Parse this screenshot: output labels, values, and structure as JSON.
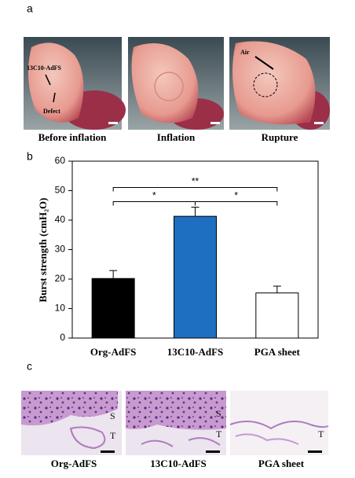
{
  "panel_labels": [
    "a",
    "b",
    "c"
  ],
  "photos": {
    "labels": [
      "Before inflation",
      "Inflation",
      "Rupture"
    ],
    "annotations": [
      "13C10-AdFS",
      "Defect",
      "Air"
    ]
  },
  "chart_data": {
    "type": "bar",
    "ylabel": "Burst strength (cmH₂O)",
    "categories": [
      "Org-AdFS",
      "13C10-AdFS",
      "PGA sheet"
    ],
    "values": [
      20.2,
      41.3,
      15.3
    ],
    "errors": [
      2.7,
      3.1,
      2.3
    ],
    "colors": [
      "#000000",
      "#1e6fc2",
      "#ffffff"
    ],
    "ylim": [
      0,
      60
    ],
    "yticks": [
      0,
      10,
      20,
      30,
      40,
      50,
      60
    ],
    "significance": [
      {
        "between": [
          0,
          1
        ],
        "label": "*"
      },
      {
        "between": [
          1,
          2
        ],
        "label": "*"
      },
      {
        "between": [
          0,
          2
        ],
        "label": "**"
      }
    ]
  },
  "histology": {
    "labels": [
      "Org-AdFS",
      "13C10-AdFS",
      "PGA sheet"
    ],
    "tissue_labels": [
      "S",
      "T"
    ]
  }
}
